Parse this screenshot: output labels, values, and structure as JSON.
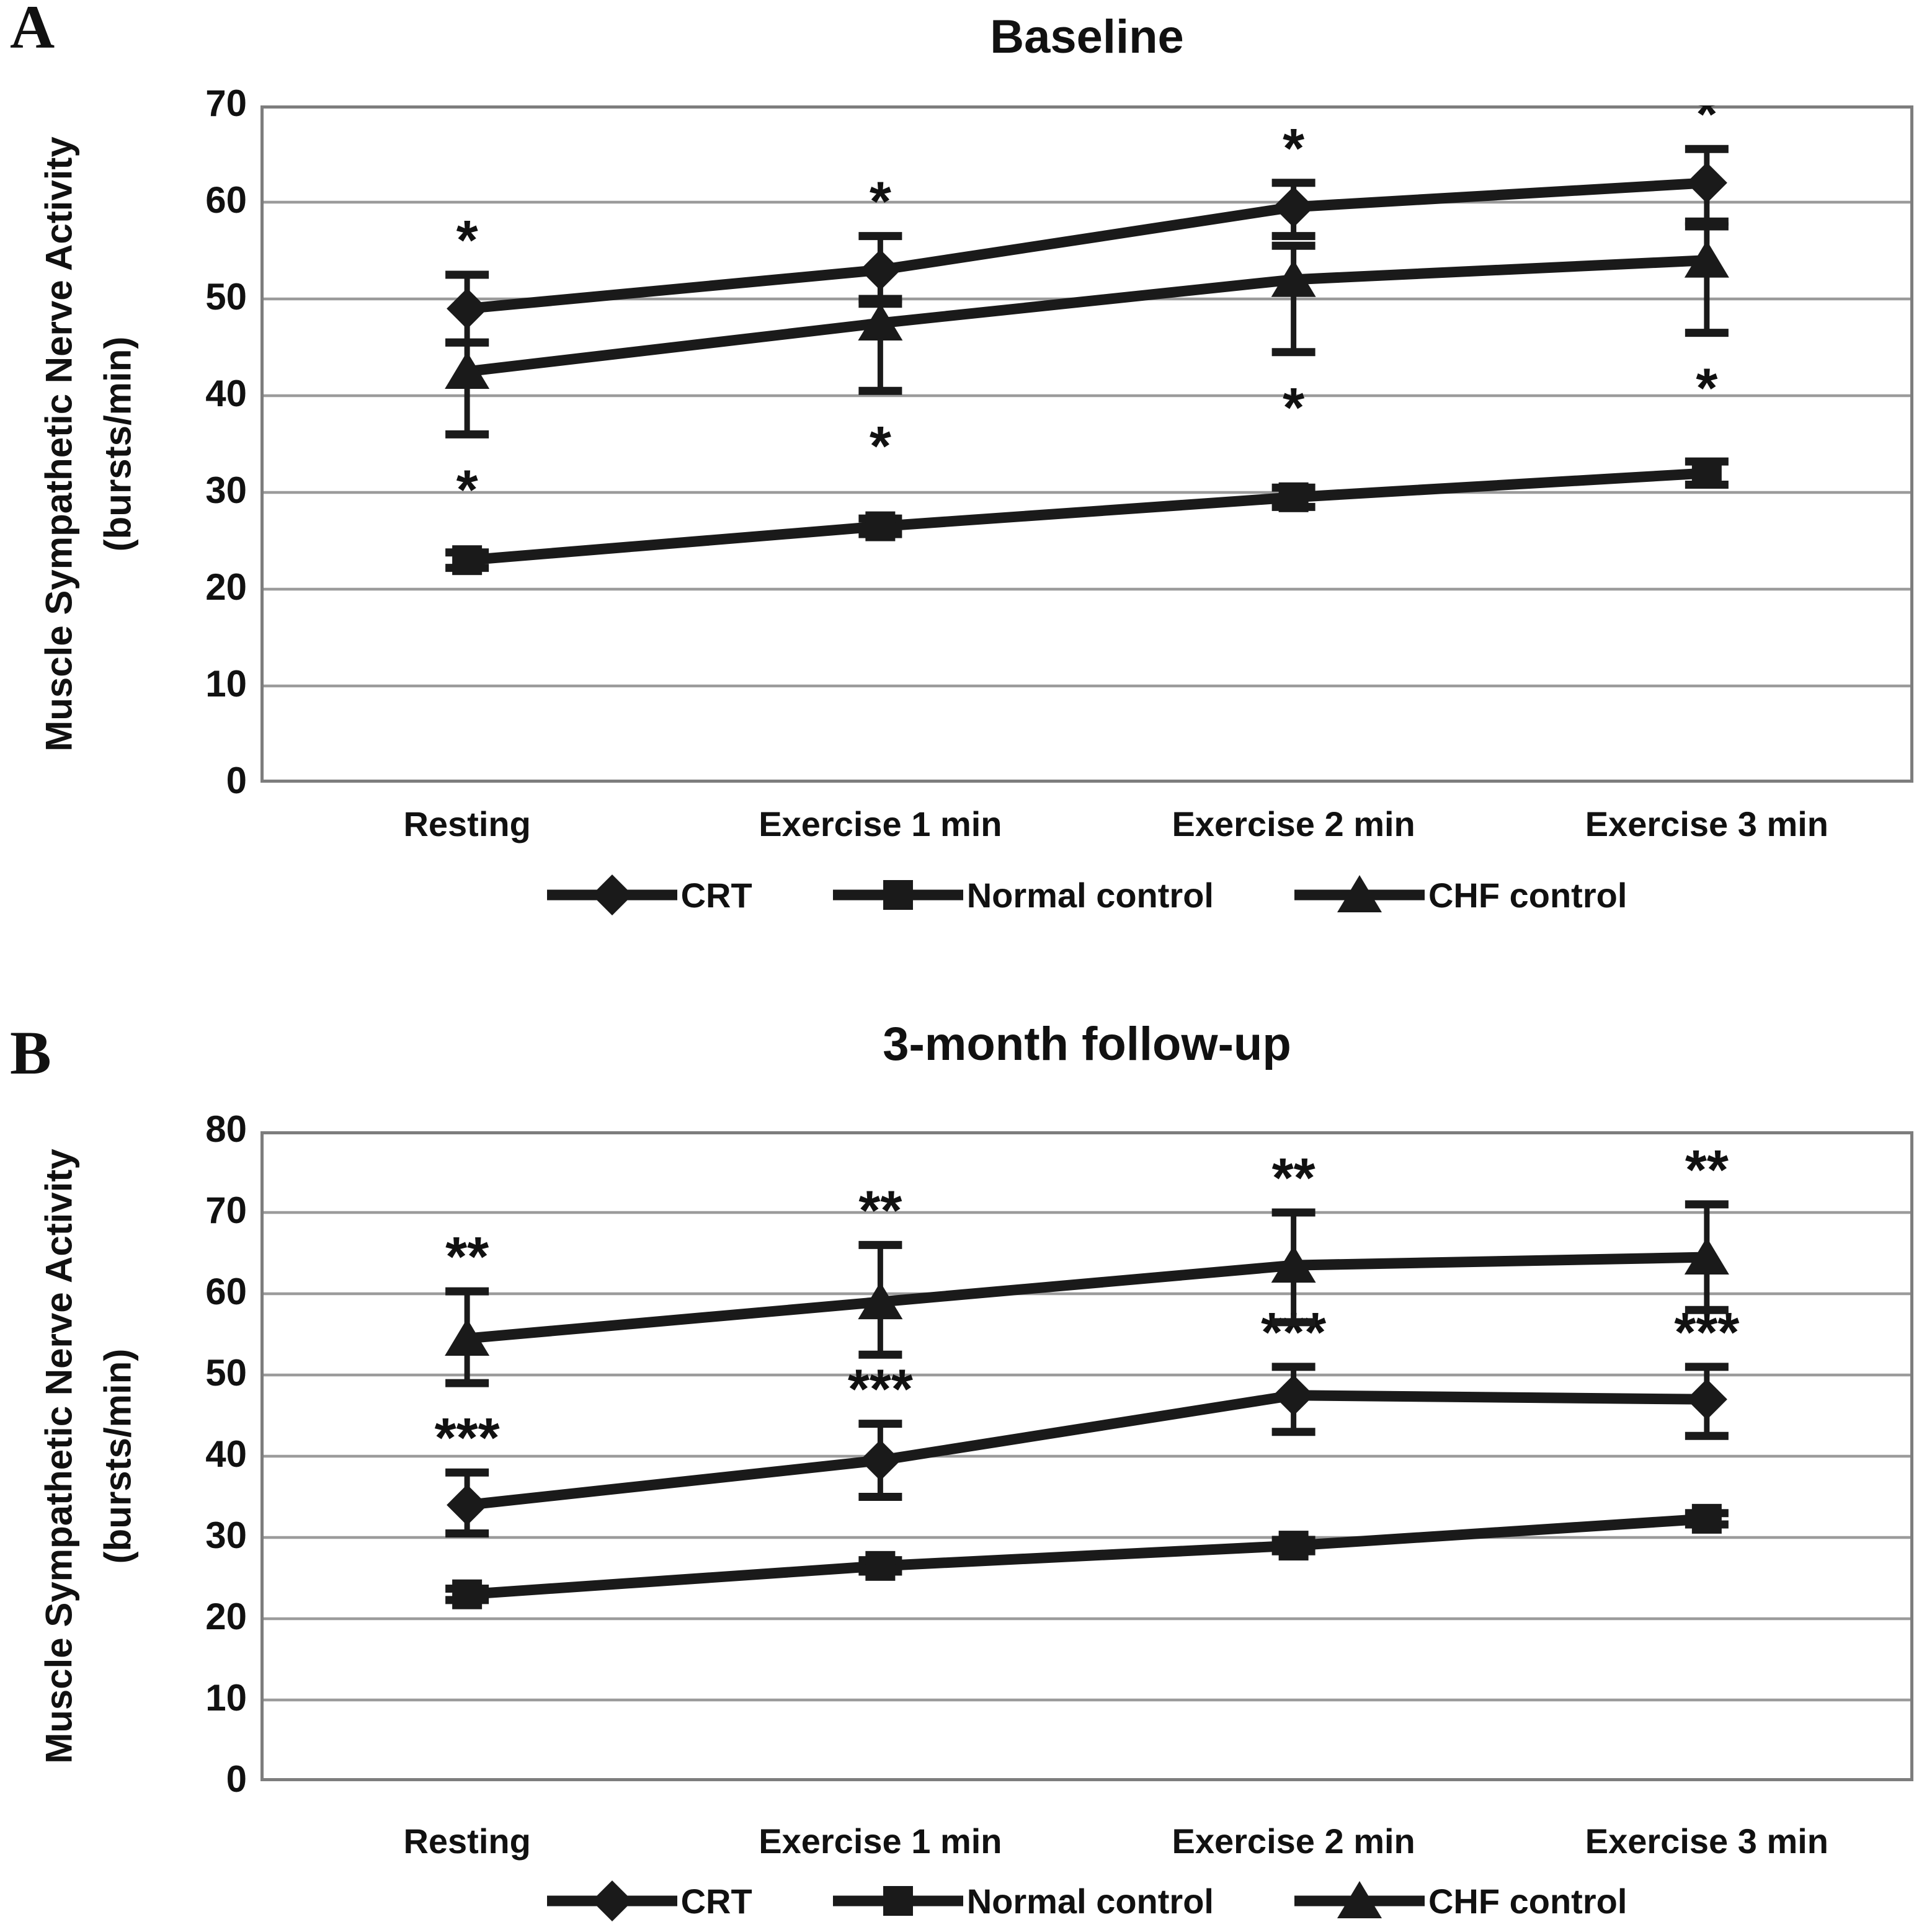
{
  "colors": {
    "series": "#1a1a1a",
    "grid": "#9b9b9b",
    "border": "#7d7d7d",
    "text": "#111111",
    "background": "#ffffff"
  },
  "panels": [
    {
      "letter": "A"
    },
    {
      "letter": "B"
    }
  ],
  "y_axis_title": {
    "line1": "Muscle Sympathetic Nerve Activity",
    "line2": "(bursts/min)"
  },
  "chart_data": [
    {
      "type": "line",
      "panel_label": "A",
      "title": "Baseline",
      "xlabel": "",
      "ylabel": "Muscle Sympathetic Nerve Activity (bursts/min)",
      "categories": [
        "Resting",
        "Exercise 1 min",
        "Exercise 2 min",
        "Exercise 3 min"
      ],
      "ylim": [
        0,
        70
      ],
      "yticks": [
        70,
        60,
        50,
        40,
        30,
        20,
        10,
        0
      ],
      "grid": true,
      "legend_position": "bottom",
      "series": [
        {
          "name": "CRT",
          "marker": "diamond",
          "values": [
            49,
            53,
            59.5,
            62
          ],
          "err_down": [
            3.5,
            3.5,
            3,
            4
          ],
          "err_up": [
            3.5,
            3.5,
            2.5,
            3.5
          ],
          "sig": [
            "*",
            "*",
            "*",
            "*"
          ],
          "sig_position": "above"
        },
        {
          "name": "Normal control",
          "marker": "square",
          "values": [
            23,
            26.5,
            29.5,
            32
          ],
          "err_down": [
            0.8,
            0.8,
            1,
            1.2
          ],
          "err_up": [
            0.8,
            0.8,
            1,
            1.2
          ],
          "sig": [
            "",
            "",
            "",
            ""
          ],
          "sig_position": "none"
        },
        {
          "name": "CHF control",
          "marker": "triangle",
          "values": [
            42.5,
            47.5,
            52,
            54
          ],
          "err_down": [
            6.5,
            7,
            7.5,
            7.5
          ],
          "err_up": [
            3,
            2.5,
            3.5,
            3.5
          ],
          "sig": [
            "*",
            "*",
            "*",
            "*"
          ],
          "sig_position": "below"
        }
      ]
    },
    {
      "type": "line",
      "panel_label": "B",
      "title": "3-month follow-up",
      "xlabel": "",
      "ylabel": "Muscle Sympathetic Nerve Activity (bursts/min)",
      "categories": [
        "Resting",
        "Exercise 1 min",
        "Exercise 2 min",
        "Exercise 3 min"
      ],
      "ylim": [
        0,
        80
      ],
      "yticks": [
        80,
        70,
        60,
        50,
        40,
        30,
        20,
        10,
        0
      ],
      "grid": true,
      "legend_position": "bottom",
      "series": [
        {
          "name": "CRT",
          "marker": "diamond",
          "values": [
            34,
            39.5,
            47.5,
            47
          ],
          "err_down": [
            3.5,
            4.5,
            4.5,
            4.5
          ],
          "err_up": [
            4,
            4.5,
            3.5,
            4
          ],
          "sig": [
            "***",
            "***",
            "***",
            "***"
          ],
          "sig_position": "above"
        },
        {
          "name": "Normal control",
          "marker": "square",
          "values": [
            23,
            26.5,
            29,
            32.3
          ],
          "err_down": [
            0.7,
            0.7,
            0.7,
            0.7
          ],
          "err_up": [
            0.7,
            0.7,
            0.7,
            0.7
          ],
          "sig": [
            "",
            "",
            "",
            ""
          ],
          "sig_position": "none"
        },
        {
          "name": "CHF control",
          "marker": "triangle",
          "values": [
            54.5,
            59,
            63.5,
            64.5
          ],
          "err_down": [
            5.5,
            6.5,
            7,
            6.5
          ],
          "err_up": [
            5.8,
            7,
            6.5,
            6.5
          ],
          "sig": [
            "**",
            "**",
            "**",
            "**"
          ],
          "sig_position": "above"
        }
      ]
    }
  ]
}
